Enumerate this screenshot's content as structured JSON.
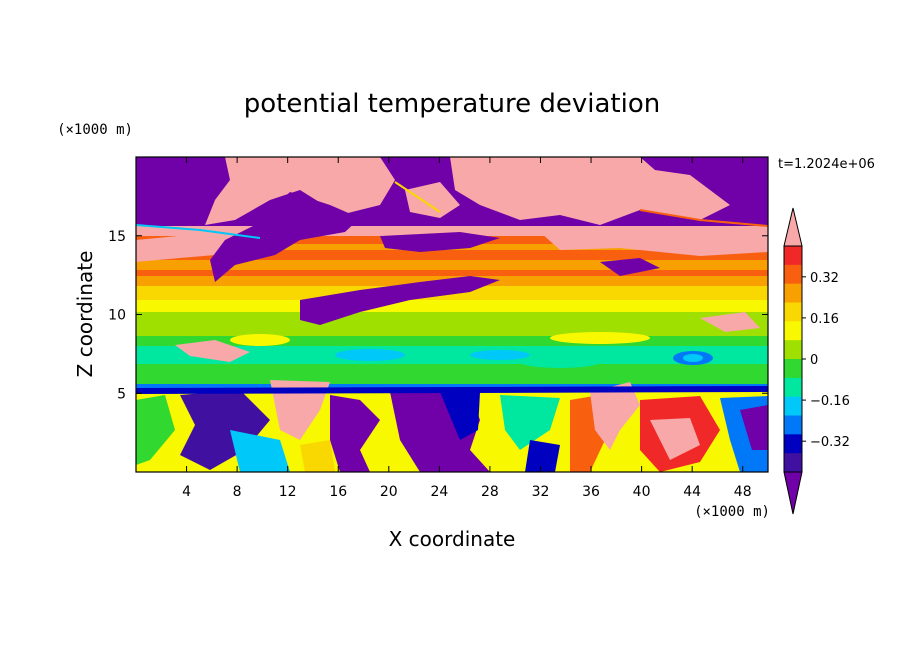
{
  "chart_data": {
    "type": "heatmap",
    "title": "potential temperature deviation",
    "xlabel": "X coordinate",
    "ylabel": "Z coordinate",
    "x_unit": "(×1000 m)",
    "y_unit": "(×1000 m)",
    "annotation": "t=1.2024e+06",
    "xlim": [
      0,
      50
    ],
    "ylim": [
      0,
      20
    ],
    "x_ticks": [
      4,
      8,
      12,
      16,
      20,
      24,
      28,
      32,
      36,
      40,
      44,
      48
    ],
    "y_ticks": [
      5,
      10,
      15
    ],
    "colorbar": {
      "levels": [
        -0.4,
        -0.32,
        -0.24,
        -0.16,
        -0.08,
        0,
        0.08,
        0.16,
        0.24,
        0.32,
        0.4
      ],
      "labels": [
        "0.32",
        "0.16",
        "0",
        "−0.16",
        "−0.32"
      ],
      "label_values": [
        0.32,
        0.16,
        0,
        -0.16,
        -0.32
      ],
      "colors_top_to_bottom": [
        "#f8a8a8",
        "#f02828",
        "#f86010",
        "#f8a000",
        "#f8d800",
        "#f8f800",
        "#a0e000",
        "#30d830",
        "#00e8a0",
        "#00c8f8",
        "#0078f8",
        "#0000c0",
        "#4010a0",
        "#7000a8"
      ],
      "over_color": "#f8a8a8",
      "under_color": "#7000a8"
    },
    "regions_description_free": false,
    "layers": [
      {
        "z": [
          17,
          20
        ],
        "value": "mixed: -0.40 below / 0.40 above"
      },
      {
        "z": [
          14,
          16.5
        ],
        "value": 0.3
      },
      {
        "z": [
          12,
          14
        ],
        "value": 0.2
      },
      {
        "z": [
          10,
          12
        ],
        "value": 0.12
      },
      {
        "z": [
          8,
          10
        ],
        "value": 0.06
      },
      {
        "z": [
          5.5,
          8
        ],
        "value": -0.02
      },
      {
        "z": [
          0,
          5.5
        ],
        "value": "turbulent mixed"
      }
    ]
  }
}
